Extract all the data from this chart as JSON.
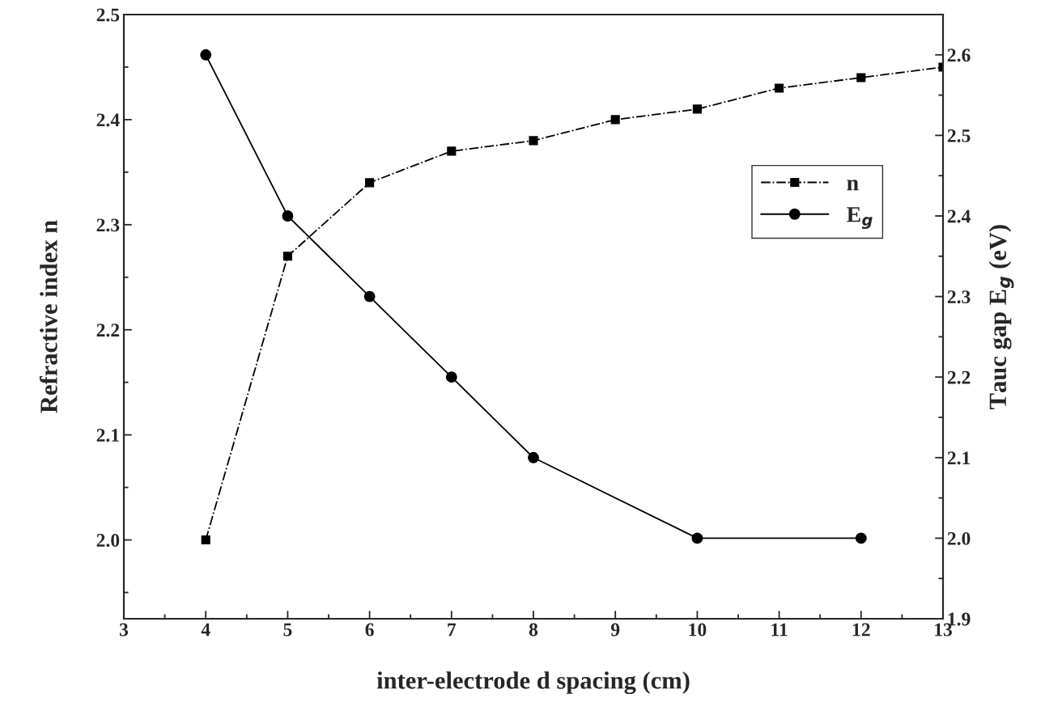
{
  "chart_data": {
    "type": "line",
    "xlabel": "inter-electrode d spacing (cm)",
    "ylabel": "Refractive index n",
    "y2label": "Tauc gap E$_{g}$ (eV)",
    "xlim": [
      3,
      13
    ],
    "xticks": [
      3,
      4,
      5,
      6,
      7,
      8,
      9,
      10,
      11,
      12,
      13
    ],
    "ylim": [
      1.925,
      2.5
    ],
    "yticks": [
      {
        "value": 2.0,
        "label": "2.0"
      },
      2.1,
      2.2,
      2.3,
      2.4,
      {
        "value": 2.5,
        "label": "2.5"
      }
    ],
    "y2lim": [
      1.9,
      2.65
    ],
    "y2ticks": [
      {
        "value": 1.9,
        "label": "1.9"
      },
      {
        "value": 2.0,
        "label": "2.0"
      },
      2.1,
      2.2,
      2.3,
      2.4,
      2.5,
      2.6
    ],
    "legend": "center right",
    "grid": false,
    "series": [
      {
        "name": "n",
        "color": "#000000",
        "marker": "square",
        "line_style": "dashdot",
        "x": [
          4,
          5,
          6,
          7,
          8,
          9,
          10,
          11,
          12,
          13
        ],
        "values": [
          2.0,
          2.27,
          2.34,
          2.37,
          2.38,
          2.4,
          2.41,
          2.43,
          2.44,
          2.45
        ]
      },
      {
        "name": "E$_{g}$",
        "color": "#000000",
        "marker": "circle",
        "line_style": "solid",
        "axis": "y2",
        "x": [
          4,
          5,
          6,
          7,
          8,
          10,
          12
        ],
        "values": [
          2.6,
          2.4,
          2.3,
          2.2,
          2.1,
          2.0,
          2.0
        ]
      }
    ]
  }
}
